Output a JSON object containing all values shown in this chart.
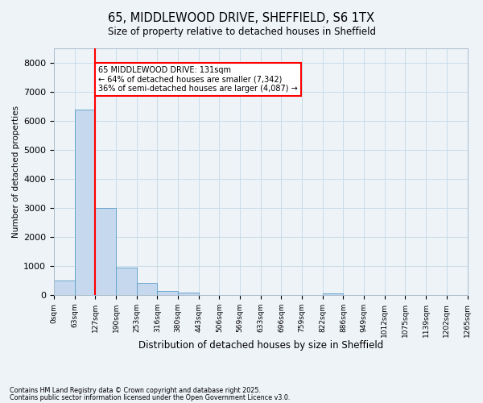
{
  "title_line1": "65, MIDDLEWOOD DRIVE, SHEFFIELD, S6 1TX",
  "title_line2": "Size of property relative to detached houses in Sheffield",
  "xlabel": "Distribution of detached houses by size in Sheffield",
  "ylabel": "Number of detached properties",
  "annotation_title": "65 MIDDLEWOOD DRIVE: 131sqm",
  "annotation_line2": "← 64% of detached houses are smaller (7,342)",
  "annotation_line3": "36% of semi-detached houses are larger (4,087) →",
  "footnote_line1": "Contains HM Land Registry data © Crown copyright and database right 2025.",
  "footnote_line2": "Contains public sector information licensed under the Open Government Licence v3.0.",
  "bin_labels": [
    "0sqm",
    "63sqm",
    "127sqm",
    "190sqm",
    "253sqm",
    "316sqm",
    "380sqm",
    "443sqm",
    "506sqm",
    "569sqm",
    "633sqm",
    "696sqm",
    "759sqm",
    "822sqm",
    "886sqm",
    "949sqm",
    "1012sqm",
    "1075sqm",
    "1139sqm",
    "1202sqm",
    "1265sqm"
  ],
  "bar_heights": [
    500,
    6400,
    3000,
    950,
    420,
    130,
    70,
    0,
    0,
    0,
    0,
    0,
    0,
    55,
    0,
    0,
    0,
    0,
    0,
    0
  ],
  "bar_color": "#c5d8ed",
  "bar_edge_color": "#5a9ec8",
  "vline_x_index": 2,
  "vline_color": "red",
  "ylim": [
    0,
    8500
  ],
  "yticks": [
    0,
    1000,
    2000,
    3000,
    4000,
    5000,
    6000,
    7000,
    8000
  ],
  "annotation_box_color": "white",
  "annotation_box_edge": "red",
  "grid_color": "#c8dce8",
  "background_color": "#eef3f8"
}
